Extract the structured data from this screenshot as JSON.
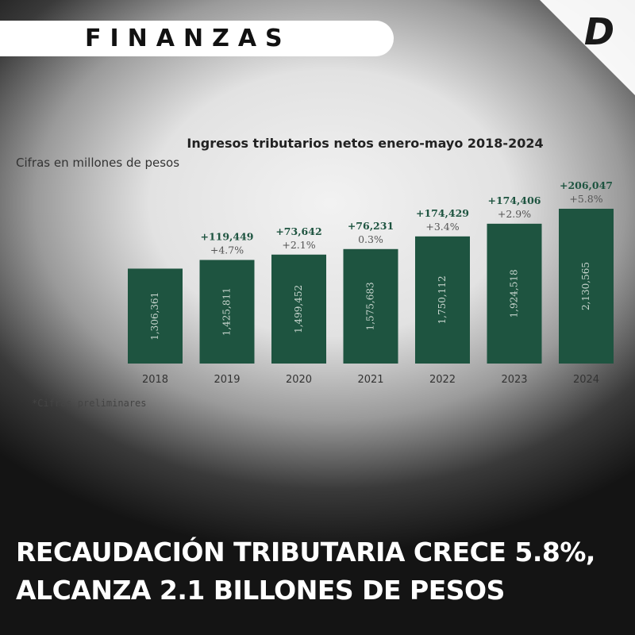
{
  "header": {
    "section_label": "FINANZAS",
    "brand_logo": "D"
  },
  "chart_data": {
    "type": "bar",
    "title": "Ingresos tributarios netos enero-mayo 2018-2024",
    "subtitle": "Cifras en millones de pesos",
    "categories": [
      "2018",
      "2019",
      "2020",
      "2021",
      "2022",
      "2023",
      "2024"
    ],
    "values": [
      1306361,
      1425811,
      1499452,
      1575683,
      1750112,
      1924518,
      2130565
    ],
    "value_labels": [
      "1,306,361",
      "1,425,811",
      "1,499,452",
      "1,575,683",
      "1,750,112",
      "1,924,518",
      "2,130,565"
    ],
    "change_labels": [
      "",
      "+119,449",
      "+73,642",
      "+76,231",
      "+174,429",
      "+174,406",
      "+206,047"
    ],
    "pct_labels": [
      "",
      "+4.7%",
      "+2.1%",
      "0.3%",
      "+3.4%",
      "+2.9%",
      "+5.8%"
    ],
    "footnote": "*Cifras preliminares",
    "colors": {
      "bar": "#1e5440",
      "bar_text": "#c9d6cf",
      "change": "#1e5440",
      "pct": "#555555"
    },
    "grid": false
  },
  "headline": {
    "line1": "RECAUDACIÓN TRIBUTARIA CRECE 5.8%,",
    "line2": "ALCANZA 2.1 BILLONES DE PESOS"
  }
}
